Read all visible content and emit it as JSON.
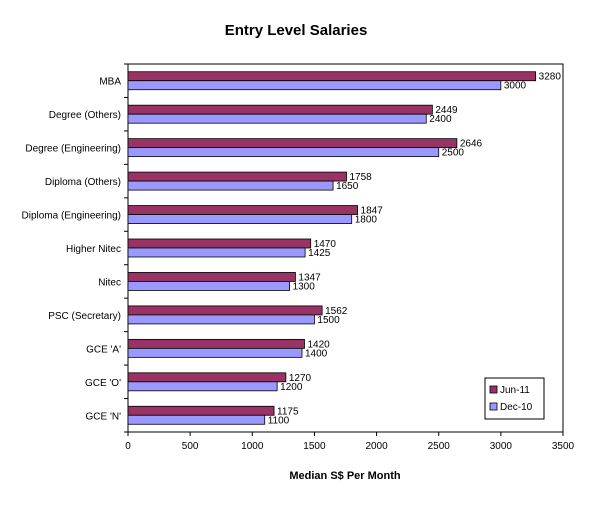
{
  "chart_data": {
    "type": "bar",
    "orientation": "horizontal",
    "title": "Entry Level Salaries",
    "xlabel": "Median S$ Per Month",
    "ylabel": "",
    "xlim": [
      0,
      3500
    ],
    "x_ticks": [
      "0",
      "500",
      "1000",
      "1500",
      "2000",
      "2500",
      "3000",
      "3500"
    ],
    "grid": false,
    "legend_position": "bottom-right",
    "categories": [
      "MBA",
      "Degree (Others)",
      "Degree (Engineering)",
      "Diploma (Others)",
      "Diploma (Engineering)",
      "Higher Nitec",
      "Nitec",
      "PSC (Secretary)",
      "GCE 'A'",
      "GCE 'O'",
      "GCE 'N'"
    ],
    "series": [
      {
        "name": "Jun-11",
        "color": "#993366",
        "values": [
          3280,
          2449,
          2646,
          1758,
          1847,
          1470,
          1347,
          1562,
          1420,
          1270,
          1175
        ]
      },
      {
        "name": "Dec-10",
        "color": "#9999FF",
        "values": [
          3000,
          2400,
          2500,
          1650,
          1800,
          1425,
          1300,
          1500,
          1400,
          1200,
          1100
        ]
      }
    ]
  }
}
